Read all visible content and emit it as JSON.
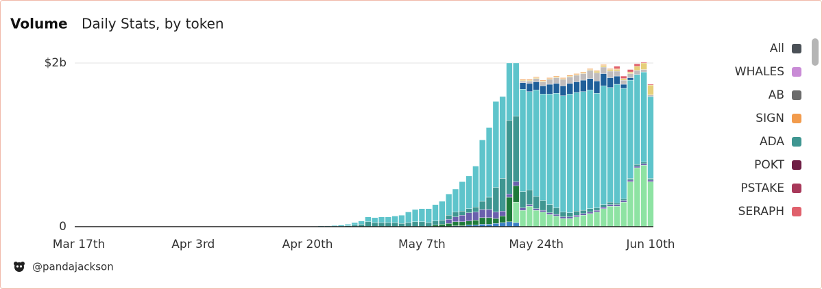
{
  "chart_data": {
    "type": "stacked_bar",
    "title": "Volume",
    "subtitle": "Daily Stats, by token",
    "author": "@pandajackson",
    "ylim": [
      0,
      2.1
    ],
    "yticks": [
      0,
      {
        "value": 2,
        "label": "$2b"
      }
    ],
    "grid": true,
    "legend_position": "right",
    "legend": [
      {
        "name": "All",
        "color": "#4b5157"
      },
      {
        "name": "WHALES",
        "color": "#c98bd6"
      },
      {
        "name": "AB",
        "color": "#6b6b6b"
      },
      {
        "name": "SIGN",
        "color": "#f29b4c"
      },
      {
        "name": "ADA",
        "color": "#3f9691"
      },
      {
        "name": "POKT",
        "color": "#6e1d44"
      },
      {
        "name": "PSTAKE",
        "color": "#a8385a"
      },
      {
        "name": "SERAPH",
        "color": "#e0606c"
      }
    ],
    "categories": [
      "Mar 17th",
      null,
      null,
      null,
      null,
      null,
      null,
      null,
      null,
      null,
      null,
      null,
      null,
      null,
      null,
      null,
      null,
      "Apr 3rd",
      null,
      null,
      null,
      null,
      null,
      null,
      null,
      null,
      null,
      null,
      null,
      null,
      null,
      null,
      null,
      null,
      "Apr 20th",
      null,
      null,
      null,
      null,
      null,
      null,
      null,
      null,
      null,
      null,
      null,
      null,
      null,
      null,
      null,
      null,
      "May 7th",
      null,
      null,
      null,
      null,
      null,
      null,
      null,
      null,
      null,
      null,
      null,
      null,
      null,
      null,
      null,
      null,
      "May 24th",
      null,
      null,
      null,
      null,
      null,
      null,
      null,
      null,
      null,
      null,
      null,
      null,
      null,
      null,
      null,
      null,
      "Jun 10th"
    ],
    "series": [
      {
        "color": "#3a7fc4",
        "values": [
          0,
          0,
          0,
          0,
          0,
          0,
          0,
          0,
          0,
          0,
          0,
          0,
          0,
          0,
          0,
          0,
          0,
          0,
          0,
          0,
          0,
          0,
          0,
          0,
          0,
          0,
          0,
          0,
          0,
          0,
          0,
          0,
          0,
          0,
          0,
          0,
          0,
          0,
          0,
          0,
          0,
          0,
          0,
          0,
          0,
          0,
          0,
          0,
          0,
          0,
          0,
          0,
          0,
          0,
          0,
          0,
          0.01,
          0.01,
          0.02,
          0.02,
          0.03,
          0.03,
          0.04,
          0.05,
          0.06,
          0.05,
          0,
          0,
          0,
          0,
          0,
          0,
          0,
          0,
          0,
          0,
          0,
          0,
          0,
          0,
          0,
          0,
          0,
          0,
          0,
          0
        ]
      },
      {
        "color": "#8ee3a3",
        "values": [
          0,
          0,
          0,
          0,
          0,
          0,
          0,
          0,
          0,
          0,
          0,
          0,
          0,
          0,
          0,
          0,
          0,
          0,
          0,
          0,
          0,
          0,
          0,
          0,
          0,
          0,
          0,
          0,
          0,
          0,
          0,
          0,
          0,
          0,
          0,
          0,
          0,
          0,
          0,
          0,
          0,
          0,
          0,
          0,
          0,
          0,
          0,
          0,
          0,
          0,
          0,
          0,
          0,
          0,
          0,
          0,
          0,
          0,
          0,
          0,
          0,
          0,
          0,
          0,
          0,
          0.25,
          0.2,
          0.25,
          0.2,
          0.18,
          0.15,
          0.13,
          0.1,
          0.1,
          0.12,
          0.14,
          0.16,
          0.18,
          0.22,
          0.25,
          0.25,
          0.3,
          0.55,
          0.72,
          0.75,
          0.55
        ]
      },
      {
        "color": "#1e7a3a",
        "values": [
          0,
          0,
          0,
          0,
          0,
          0,
          0,
          0,
          0,
          0,
          0,
          0,
          0,
          0,
          0,
          0,
          0,
          0,
          0,
          0,
          0,
          0,
          0,
          0,
          0,
          0,
          0,
          0,
          0,
          0,
          0,
          0,
          0,
          0,
          0,
          0,
          0,
          0,
          0,
          0,
          0,
          0,
          0,
          0,
          0,
          0,
          0,
          0,
          0,
          0,
          0,
          0,
          0,
          0.02,
          0.03,
          0.04,
          0.05,
          0.05,
          0.05,
          0.06,
          0.08,
          0.08,
          0.06,
          0.08,
          0.3,
          0.2,
          0,
          0,
          0,
          0,
          0,
          0,
          0,
          0,
          0,
          0,
          0,
          0,
          0,
          0,
          0,
          0,
          0,
          0,
          0,
          0
        ]
      },
      {
        "color": "#6a5fad",
        "values": [
          0,
          0,
          0,
          0,
          0,
          0,
          0,
          0,
          0,
          0,
          0,
          0,
          0,
          0,
          0,
          0,
          0,
          0,
          0,
          0,
          0,
          0,
          0,
          0,
          0,
          0,
          0,
          0,
          0,
          0,
          0,
          0,
          0,
          0,
          0,
          0,
          0,
          0,
          0,
          0,
          0,
          0,
          0,
          0,
          0,
          0,
          0,
          0,
          0,
          0,
          0,
          0,
          0,
          0,
          0,
          0.05,
          0.06,
          0.08,
          0.1,
          0.1,
          0.1,
          0.1,
          0.08,
          0.06,
          0.04,
          0.05,
          0.03,
          0.02,
          0.02,
          0.02,
          0.02,
          0.02,
          0.02,
          0.02,
          0.02,
          0.02,
          0.02,
          0.02,
          0.02,
          0.02,
          0.02,
          0.02,
          0.02,
          0.02,
          0.02,
          0.02
        ]
      },
      {
        "color": "#3f9691",
        "values": [
          0,
          0,
          0,
          0,
          0,
          0,
          0,
          0,
          0,
          0,
          0,
          0,
          0,
          0,
          0,
          0,
          0,
          0,
          0,
          0,
          0,
          0,
          0,
          0,
          0,
          0,
          0,
          0,
          0,
          0,
          0,
          0,
          0,
          0,
          0,
          0,
          0,
          0,
          0,
          0,
          0.01,
          0.02,
          0.03,
          0.06,
          0.05,
          0.05,
          0.05,
          0.05,
          0.04,
          0.05,
          0.06,
          0.06,
          0.05,
          0.05,
          0.05,
          0.05,
          0.06,
          0.05,
          0.05,
          0.06,
          0.1,
          0.15,
          0.3,
          0.4,
          0.9,
          0.8,
          0.2,
          0.18,
          0.15,
          0.12,
          0.1,
          0.08,
          0.06,
          0.05,
          0.05,
          0.04,
          0.04,
          0.03,
          0.03,
          0.03,
          0.02,
          0.02,
          0.02,
          0.02,
          0.02,
          0.02
        ]
      },
      {
        "color": "#5ec4cb",
        "values": [
          0,
          0,
          0,
          0,
          0,
          0,
          0,
          0,
          0,
          0,
          0,
          0,
          0,
          0,
          0,
          0,
          0,
          0,
          0,
          0,
          0,
          0,
          0,
          0,
          0,
          0,
          0,
          0,
          0,
          0,
          0,
          0,
          0,
          0,
          0,
          0.005,
          0.01,
          0.01,
          0.015,
          0.02,
          0.02,
          0.03,
          0.04,
          0.06,
          0.06,
          0.07,
          0.07,
          0.08,
          0.1,
          0.13,
          0.15,
          0.16,
          0.17,
          0.2,
          0.23,
          0.26,
          0.28,
          0.36,
          0.4,
          0.5,
          0.75,
          0.85,
          1.05,
          1.0,
          0.7,
          0.65,
          1.25,
          1.2,
          1.3,
          1.3,
          1.35,
          1.4,
          1.42,
          1.45,
          1.45,
          1.45,
          1.45,
          1.4,
          1.45,
          1.4,
          1.45,
          1.35,
          1.2,
          1.1,
          1.1,
          1.0
        ]
      },
      {
        "color": "#1f5f99",
        "values": [
          0,
          0,
          0,
          0,
          0,
          0,
          0,
          0,
          0,
          0,
          0,
          0,
          0,
          0,
          0,
          0,
          0,
          0,
          0,
          0,
          0,
          0,
          0,
          0,
          0,
          0,
          0,
          0,
          0,
          0,
          0,
          0,
          0,
          0,
          0,
          0,
          0,
          0,
          0,
          0,
          0,
          0,
          0,
          0,
          0,
          0,
          0,
          0,
          0,
          0,
          0,
          0,
          0,
          0,
          0,
          0,
          0,
          0,
          0,
          0,
          0,
          0,
          0,
          0,
          0,
          0,
          0.08,
          0.1,
          0.1,
          0.1,
          0.12,
          0.12,
          0.12,
          0.13,
          0.13,
          0.14,
          0.14,
          0.15,
          0.15,
          0.12,
          0.1,
          0.05,
          0.03,
          0,
          0,
          0
        ]
      },
      {
        "color": "#c0bcbc",
        "values": [
          0,
          0,
          0,
          0,
          0,
          0,
          0,
          0,
          0,
          0,
          0,
          0,
          0,
          0,
          0,
          0,
          0,
          0,
          0,
          0,
          0,
          0,
          0,
          0,
          0,
          0,
          0,
          0,
          0,
          0,
          0,
          0,
          0,
          0,
          0,
          0,
          0,
          0,
          0,
          0,
          0,
          0,
          0,
          0,
          0,
          0,
          0,
          0,
          0,
          0,
          0,
          0,
          0,
          0,
          0,
          0,
          0,
          0,
          0,
          0,
          0,
          0,
          0,
          0,
          0,
          0,
          0.02,
          0.03,
          0.04,
          0.05,
          0.06,
          0.07,
          0.08,
          0.08,
          0.08,
          0.08,
          0.1,
          0.1,
          0.08,
          0.08,
          0.06,
          0.05,
          0.05,
          0.05,
          0.03,
          0.02
        ]
      },
      {
        "color": "#e6cf7a",
        "values": [
          0,
          0,
          0,
          0,
          0,
          0,
          0,
          0,
          0,
          0,
          0,
          0,
          0,
          0,
          0,
          0,
          0,
          0,
          0,
          0,
          0,
          0,
          0,
          0,
          0,
          0,
          0,
          0,
          0,
          0,
          0,
          0,
          0,
          0,
          0,
          0,
          0,
          0,
          0,
          0,
          0,
          0,
          0,
          0,
          0,
          0,
          0,
          0,
          0,
          0,
          0,
          0,
          0,
          0,
          0,
          0,
          0,
          0,
          0,
          0,
          0,
          0,
          0,
          0,
          0,
          0,
          0.01,
          0.01,
          0.01,
          0.01,
          0.01,
          0.01,
          0.01,
          0.01,
          0.01,
          0.01,
          0.01,
          0.02,
          0.02,
          0.02,
          0.02,
          0.02,
          0.02,
          0.05,
          0.08,
          0.12
        ]
      },
      {
        "color": "#f29b4c",
        "values": [
          0,
          0,
          0,
          0,
          0,
          0,
          0,
          0,
          0,
          0,
          0,
          0,
          0,
          0,
          0,
          0,
          0,
          0,
          0,
          0,
          0,
          0,
          0,
          0,
          0,
          0,
          0,
          0,
          0,
          0,
          0,
          0,
          0,
          0,
          0,
          0,
          0,
          0,
          0,
          0,
          0,
          0,
          0,
          0,
          0,
          0,
          0,
          0,
          0,
          0,
          0,
          0,
          0,
          0,
          0,
          0,
          0,
          0,
          0,
          0,
          0,
          0,
          0,
          0,
          0,
          0,
          0.01,
          0.01,
          0.01,
          0.01,
          0.01,
          0.01,
          0.01,
          0.01,
          0.01,
          0.01,
          0.01,
          0.01,
          0.01,
          0.01,
          0.01,
          0,
          0,
          0,
          0,
          0
        ]
      },
      {
        "color": "#e0606c",
        "values": [
          0,
          0,
          0,
          0,
          0,
          0,
          0,
          0,
          0,
          0,
          0,
          0,
          0,
          0,
          0,
          0,
          0,
          0,
          0,
          0,
          0,
          0,
          0,
          0,
          0,
          0,
          0,
          0,
          0,
          0,
          0,
          0,
          0,
          0,
          0,
          0,
          0,
          0,
          0,
          0,
          0,
          0,
          0,
          0,
          0,
          0,
          0,
          0,
          0,
          0,
          0,
          0,
          0,
          0,
          0,
          0,
          0,
          0,
          0,
          0,
          0,
          0,
          0,
          0,
          0,
          0,
          0,
          0,
          0,
          0,
          0,
          0,
          0,
          0,
          0,
          0,
          0,
          0,
          0,
          0,
          0.03,
          0.03,
          0.03,
          0.03,
          0.01,
          0.01
        ]
      }
    ]
  }
}
